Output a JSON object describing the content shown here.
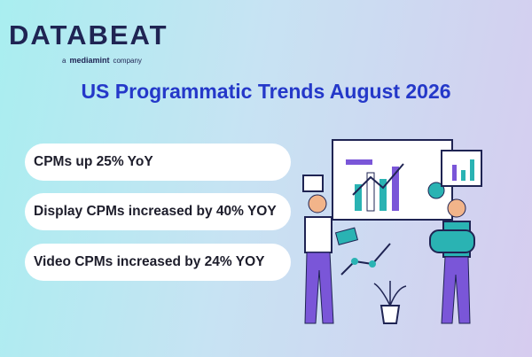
{
  "logo": {
    "brand": "DATABEAT",
    "prefix": "a",
    "parent": "mediamint",
    "suffix": "company"
  },
  "title": "US Programmatic Trends August 2026",
  "items": [
    "CPMs up 25% YoY",
    "Display CPMs increased by 40% YOY",
    "Video CPMs increased by 24% YOY"
  ]
}
